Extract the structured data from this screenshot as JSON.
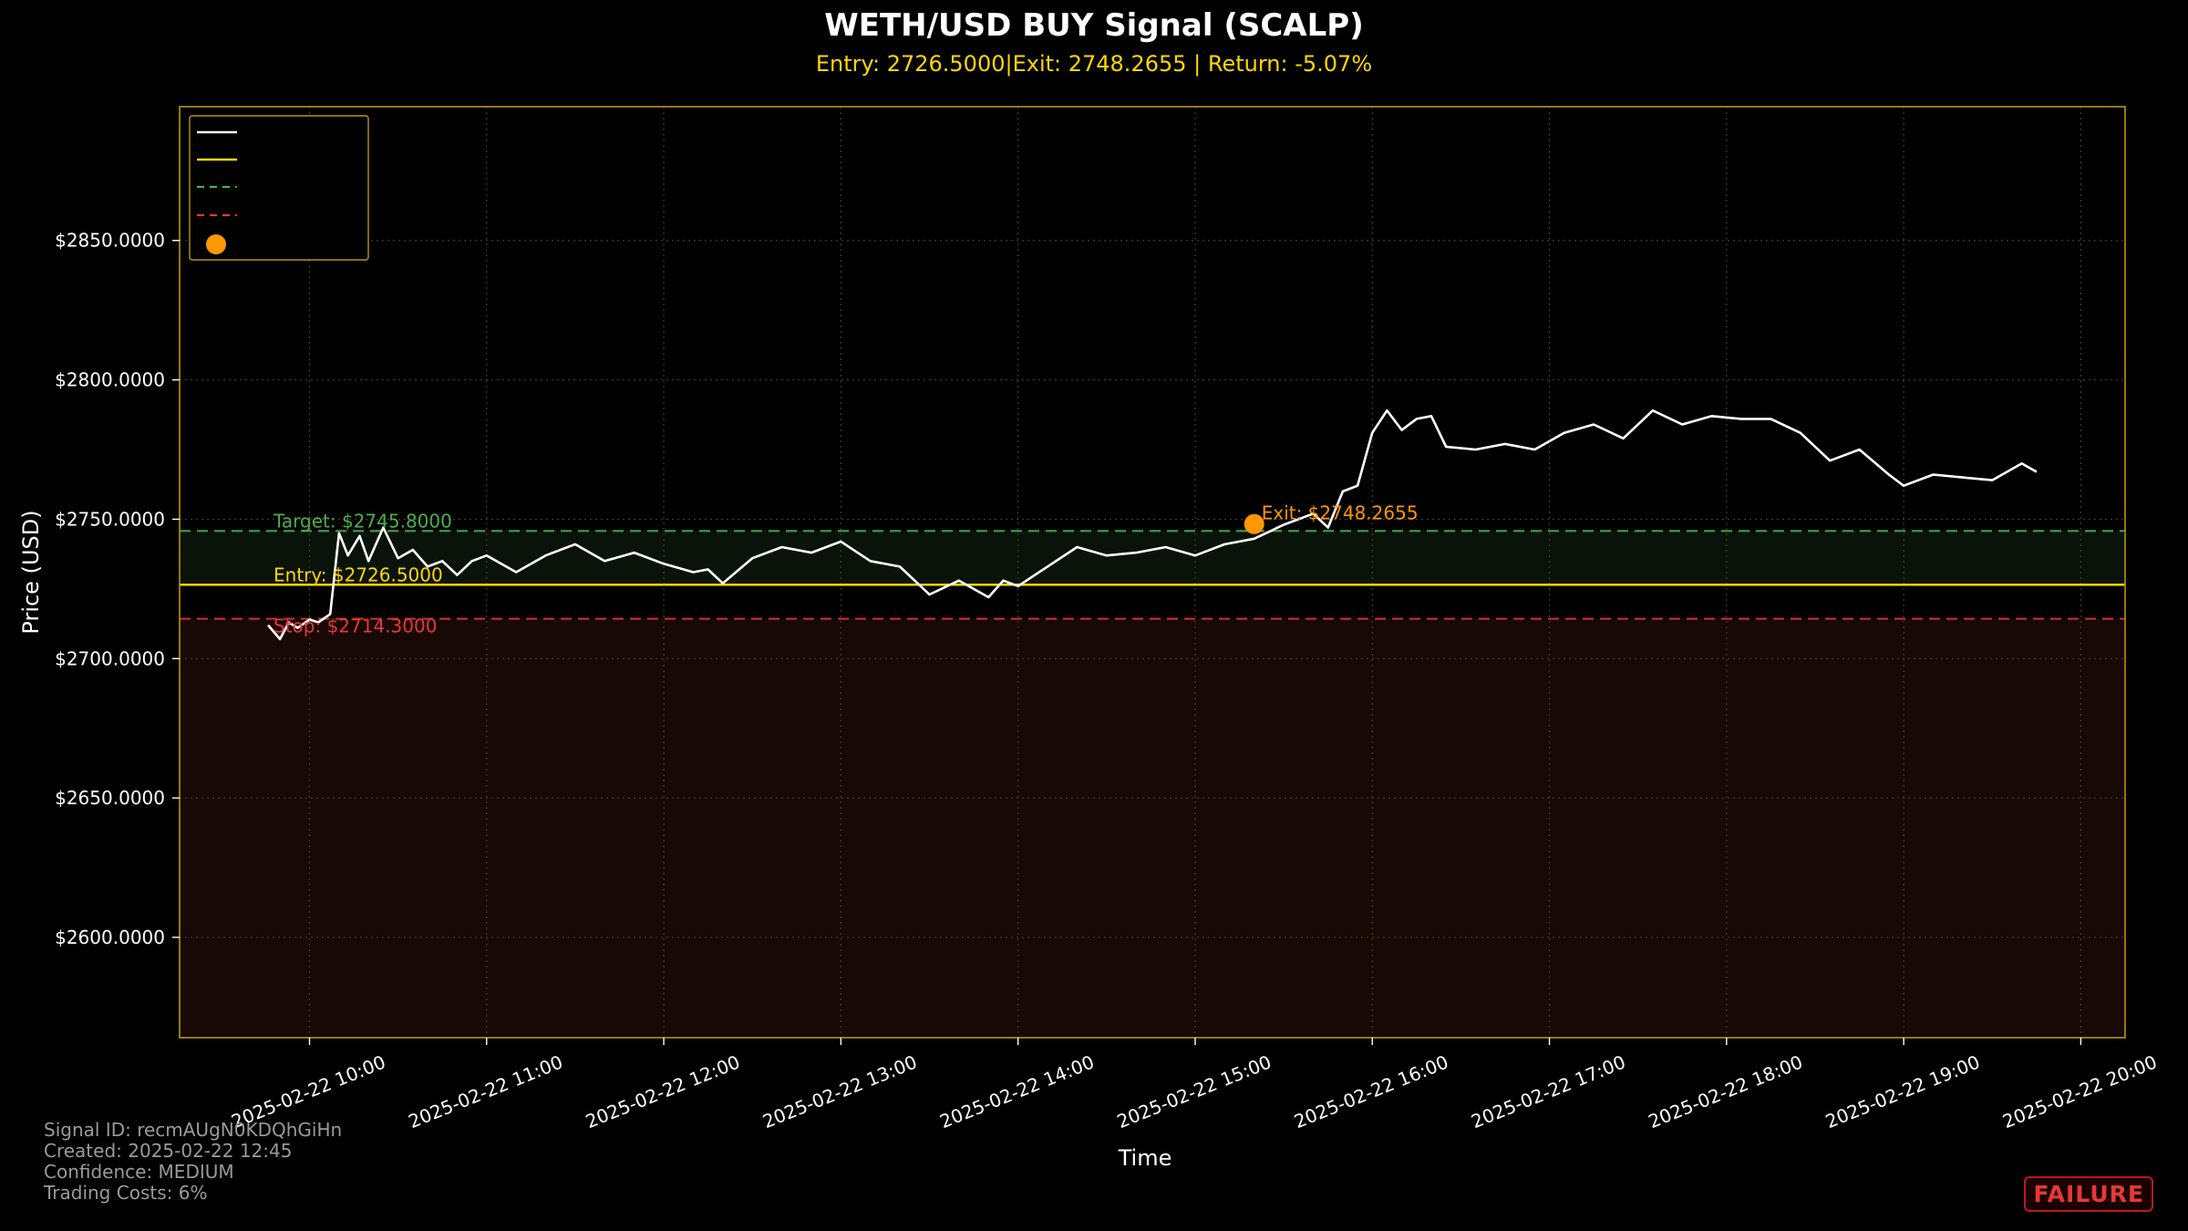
{
  "header": {
    "title": "WETH/USD BUY Signal (SCALP)",
    "subtitle": "Entry: 2726.5000|Exit: 2748.2655 | Return: -5.07%"
  },
  "footer": {
    "signal_id": "Signal ID: recmAUgN0KDQhGiHn",
    "created": "Created: 2025-02-22 12:45",
    "confidence": "Confidence: MEDIUM",
    "costs": "Trading Costs: 6%"
  },
  "status_badge": "FAILURE",
  "colors": {
    "background": "#000000",
    "frame": "#b8960c",
    "price": "#ffffff",
    "entry": "#ffd700",
    "target": "#4caf50",
    "stop": "#e53935",
    "exit": "#ff9800",
    "profit_zone": "#0a130a",
    "loss_zone": "#180806"
  },
  "chart_data": {
    "type": "line",
    "xlabel": "Time",
    "ylabel": "Price (USD)",
    "xlim": [
      "2025-02-22 09:16",
      "2025-02-22 20:15"
    ],
    "ylim": [
      2564,
      2898
    ],
    "grid": true,
    "legend_position": "top-left",
    "x_ticks": [
      "2025-02-22 10:00",
      "2025-02-22 11:00",
      "2025-02-22 12:00",
      "2025-02-22 13:00",
      "2025-02-22 14:00",
      "2025-02-22 15:00",
      "2025-02-22 16:00",
      "2025-02-22 17:00",
      "2025-02-22 18:00",
      "2025-02-22 19:00",
      "2025-02-22 20:00"
    ],
    "y_ticks": [
      2600,
      2650,
      2700,
      2750,
      2800,
      2850
    ],
    "y_tick_labels": [
      "$2600.0000",
      "$2650.0000",
      "$2700.0000",
      "$2750.0000",
      "$2800.0000",
      "$2850.0000"
    ],
    "series": [
      {
        "x": [
          "2025-02-22 09:46",
          "2025-02-22 09:50",
          "2025-02-22 09:53",
          "2025-02-22 09:56",
          "2025-02-22 10:00",
          "2025-02-22 10:03",
          "2025-02-22 10:07",
          "2025-02-22 10:10",
          "2025-02-22 10:13",
          "2025-02-22 10:17",
          "2025-02-22 10:20",
          "2025-02-22 10:25",
          "2025-02-22 10:30",
          "2025-02-22 10:35",
          "2025-02-22 10:40",
          "2025-02-22 10:45",
          "2025-02-22 10:50",
          "2025-02-22 10:55",
          "2025-02-22 11:00",
          "2025-02-22 11:10",
          "2025-02-22 11:20",
          "2025-02-22 11:30",
          "2025-02-22 11:40",
          "2025-02-22 11:50",
          "2025-02-22 12:00",
          "2025-02-22 12:10",
          "2025-02-22 12:15",
          "2025-02-22 12:20",
          "2025-02-22 12:30",
          "2025-02-22 12:40",
          "2025-02-22 12:50",
          "2025-02-22 13:00",
          "2025-02-22 13:10",
          "2025-02-22 13:20",
          "2025-02-22 13:30",
          "2025-02-22 13:40",
          "2025-02-22 13:50",
          "2025-02-22 13:55",
          "2025-02-22 14:00",
          "2025-02-22 14:10",
          "2025-02-22 14:20",
          "2025-02-22 14:30",
          "2025-02-22 14:40",
          "2025-02-22 14:50",
          "2025-02-22 15:00",
          "2025-02-22 15:10",
          "2025-02-22 15:20",
          "2025-02-22 15:30",
          "2025-02-22 15:40",
          "2025-02-22 15:45",
          "2025-02-22 15:50",
          "2025-02-22 15:55",
          "2025-02-22 16:00",
          "2025-02-22 16:05",
          "2025-02-22 16:10",
          "2025-02-22 16:15",
          "2025-02-22 16:20",
          "2025-02-22 16:25",
          "2025-02-22 16:35",
          "2025-02-22 16:45",
          "2025-02-22 16:55",
          "2025-02-22 17:05",
          "2025-02-22 17:15",
          "2025-02-22 17:25",
          "2025-02-22 17:35",
          "2025-02-22 17:45",
          "2025-02-22 17:55",
          "2025-02-22 18:05",
          "2025-02-22 18:15",
          "2025-02-22 18:25",
          "2025-02-22 18:35",
          "2025-02-22 18:45",
          "2025-02-22 18:55",
          "2025-02-22 19:00",
          "2025-02-22 19:10",
          "2025-02-22 19:20",
          "2025-02-22 19:30",
          "2025-02-22 19:40",
          "2025-02-22 19:45"
        ],
        "values": [
          2712,
          2707,
          2713,
          2711,
          2714,
          2713,
          2716,
          2745,
          2737,
          2744,
          2735,
          2747,
          2736,
          2739,
          2733,
          2735,
          2730,
          2735,
          2737,
          2731,
          2737,
          2741,
          2735,
          2738,
          2734,
          2731,
          2732,
          2727,
          2736,
          2740,
          2738,
          2742,
          2735,
          2733,
          2723,
          2728,
          2722,
          2728,
          2726,
          2733,
          2740,
          2737,
          2738,
          2740,
          2737,
          2741,
          2743,
          2748,
          2752,
          2747,
          2760,
          2762,
          2781,
          2789,
          2782,
          2786,
          2787,
          2776,
          2775,
          2777,
          2775,
          2781,
          2784,
          2779,
          2789,
          2784,
          2787,
          2786,
          2786,
          2781,
          2771,
          2775,
          2766,
          2762,
          2766,
          2765,
          2764,
          2770,
          2767
        ]
      }
    ],
    "levels": {
      "target": {
        "value": 2745.8,
        "label": "Target: $2745.8000"
      },
      "entry": {
        "value": 2726.5,
        "label": "Entry: $2726.5000"
      },
      "stop": {
        "value": 2714.3,
        "label": "Stop: $2714.3000"
      }
    },
    "exit_point": {
      "x": "2025-02-22 15:20",
      "y": 2748.2655,
      "label": "Exit: $2748.2655"
    }
  }
}
